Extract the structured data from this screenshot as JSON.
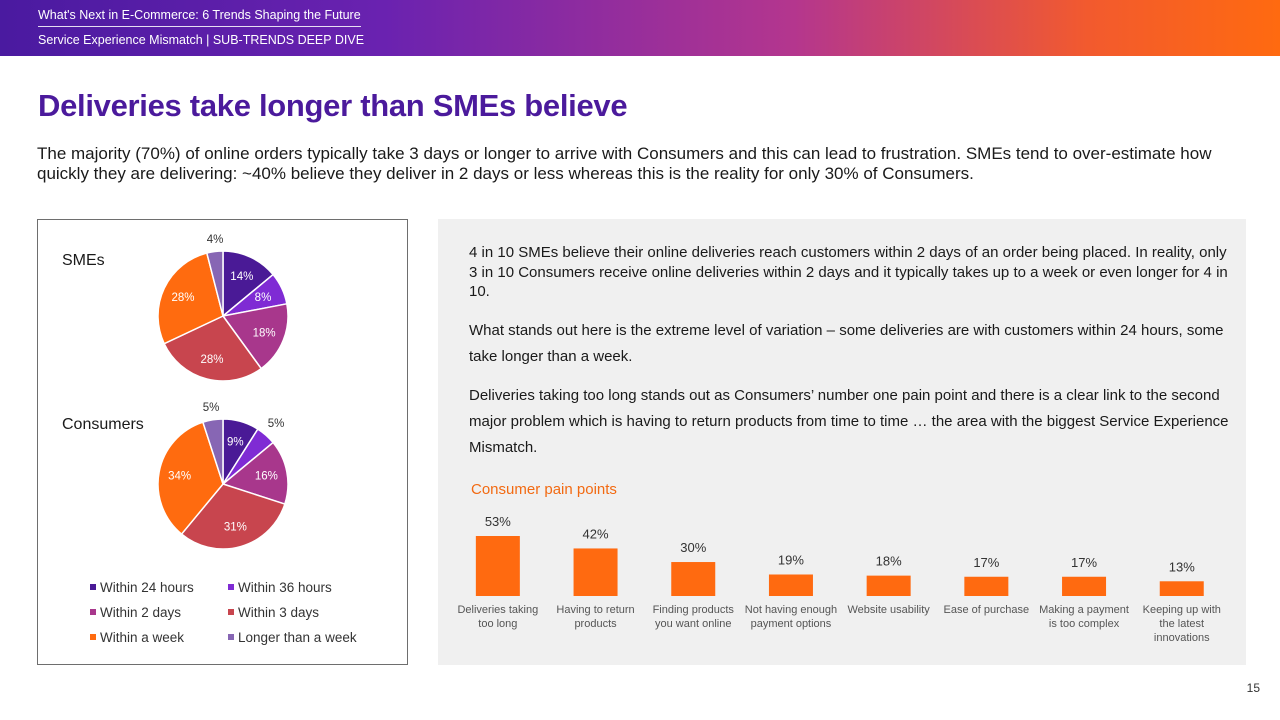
{
  "header": {
    "line1": "What's Next in E-Commerce: 6 Trends Shaping the Future",
    "line2": "Service Experience Mismatch | SUB-TRENDS DEEP DIVE"
  },
  "title": "Deliveries take longer than SMEs believe",
  "subtitle": "The majority (70%) of online orders typically take 3 days or longer to arrive with Consumers and this can lead to frustration. SMEs tend to over-estimate how quickly they are delivering: ~40% believe they deliver in 2 days or less whereas this is the reality for only 30% of Consumers.",
  "colors": {
    "within_24_hours": "#4a1a96",
    "within_36_hours": "#7f2bd4",
    "within_2_days": "#a8378c",
    "within_3_days": "#c8454e",
    "within_a_week": "#ff6b0f",
    "longer_than_a_week": "#8766b4",
    "accent_orange": "#ff6a10",
    "title_purple": "#4b1a9c"
  },
  "legend": {
    "items": [
      {
        "label": "Within 24 hours",
        "color": "#4a1a96"
      },
      {
        "label": "Within 36 hours",
        "color": "#7f2bd4"
      },
      {
        "label": "Within 2 days",
        "color": "#a8378c"
      },
      {
        "label": "Within 3 days",
        "color": "#c8454e"
      },
      {
        "label": "Within a week",
        "color": "#ff6b0f"
      },
      {
        "label": "Longer than a week",
        "color": "#8766b4"
      }
    ]
  },
  "right_panel": {
    "para1": "4 in 10 SMEs believe their online deliveries reach customers within 2 days of an order being placed. In reality, only 3 in 10 Consumers receive online deliveries within 2 days and it typically takes up to a week or even longer for 4 in 10.",
    "para2": "What stands out here is the extreme level of variation – some deliveries are with customers within 24 hours, some take longer than a week.",
    "para3": "Deliveries taking too long stands out as Consumers’ number one pain point and there is a clear link to the second major problem which is having to return products from time to time … the area with the biggest Service Experience Mismatch."
  },
  "page_number": "15",
  "chart_data": [
    {
      "type": "pie",
      "title": "SMEs",
      "categories": [
        "Within 24 hours",
        "Within 36 hours",
        "Within 2 days",
        "Within 3 days",
        "Within a week",
        "Longer than a week"
      ],
      "values": [
        14,
        8,
        18,
        28,
        28,
        4
      ],
      "labels": [
        "14%",
        "8%",
        "18%",
        "28%",
        "28%",
        "4%"
      ]
    },
    {
      "type": "pie",
      "title": "Consumers",
      "categories": [
        "Within 24 hours",
        "Within 36 hours",
        "Within 2 days",
        "Within 3 days",
        "Within a week",
        "Longer than a week"
      ],
      "values": [
        9,
        5,
        16,
        31,
        34,
        5
      ],
      "labels": [
        "9%",
        "5%",
        "16%",
        "31%",
        "34%",
        "5%"
      ]
    },
    {
      "type": "bar",
      "title": "Consumer pain points",
      "categories": [
        "Deliveries taking too long",
        "Having to return products",
        "Finding products you want online",
        "Not having enough payment options",
        "Website usability",
        "Ease of purchase",
        "Making a payment is too complex",
        "Keeping up with the latest innovations"
      ],
      "values": [
        53,
        42,
        30,
        19,
        18,
        17,
        17,
        13
      ],
      "labels": [
        "53%",
        "42%",
        "30%",
        "19%",
        "18%",
        "17%",
        "17%",
        "13%"
      ],
      "ylim": [
        0,
        53
      ]
    }
  ]
}
